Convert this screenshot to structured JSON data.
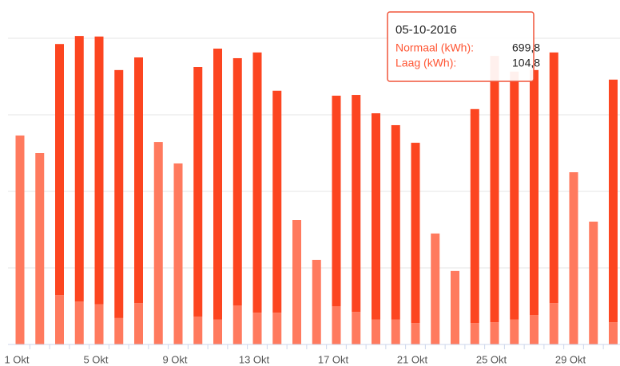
{
  "chart_data": {
    "type": "stacked_bar",
    "categories": [
      "1 Okt",
      null,
      null,
      null,
      "5 Okt",
      null,
      null,
      null,
      "9 Okt",
      null,
      null,
      null,
      "13 Okt",
      null,
      null,
      null,
      "17 Okt",
      null,
      null,
      null,
      "21 Okt",
      null,
      null,
      null,
      "25 Okt",
      null,
      null,
      null,
      "29 Okt",
      null,
      null
    ],
    "series": [
      {
        "name": "Laag (kWh):",
        "color": "#ff7a5e",
        "values": [
          546,
          500,
          129,
          112,
          104.8,
          69,
          108,
          529,
          473,
          73,
          65,
          102,
          83,
          83,
          325,
          221,
          100,
          85,
          65,
          65,
          56,
          290,
          192,
          56,
          58,
          65,
          77,
          108,
          450,
          321,
          58
        ]
      },
      {
        "name": "Normaal (kWh):",
        "color": "#fc4520",
        "values": [
          null,
          null,
          656,
          694,
          699.8,
          648,
          642,
          null,
          null,
          652,
          708,
          646,
          680,
          580,
          null,
          null,
          550,
          567,
          539,
          508,
          471,
          null,
          null,
          559,
          696,
          648,
          640,
          655,
          null,
          null,
          634
        ]
      }
    ],
    "ylim": [
      0,
      900
    ],
    "yticks": [
      0,
      200,
      400,
      600,
      800
    ],
    "show_ytick_labels": false,
    "grid": true,
    "tooltip": {
      "index": 4,
      "title": "05-10-2016",
      "rows": [
        {
          "series": 1,
          "value_label": "699,8"
        },
        {
          "series": 0,
          "value_label": "104,8"
        }
      ]
    }
  }
}
